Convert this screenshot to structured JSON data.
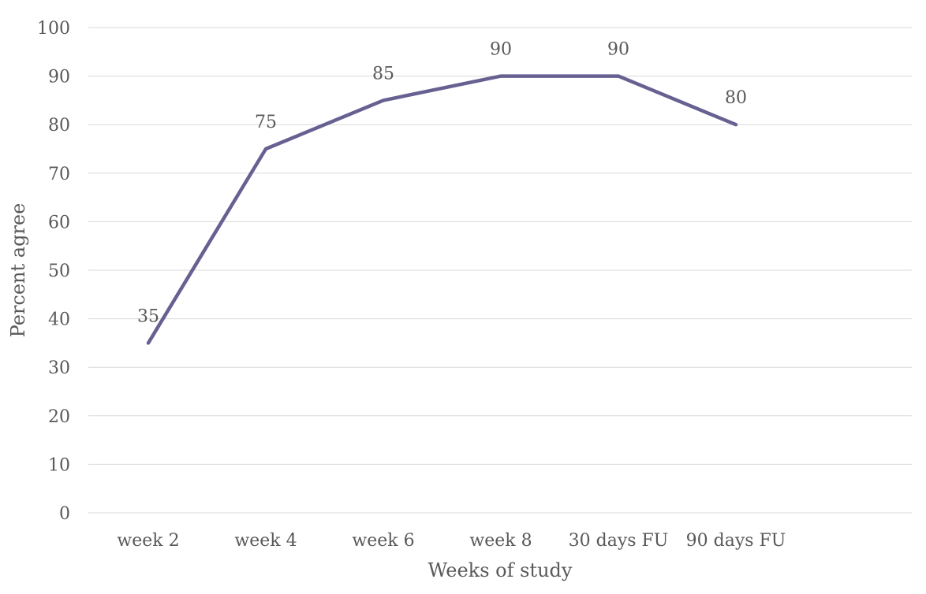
{
  "chart_data": {
    "type": "line",
    "categories": [
      "week 2",
      "week 4",
      "week 6",
      "week 8",
      "30 days FU",
      "90 days FU"
    ],
    "series": [
      {
        "values": [
          35,
          75,
          85,
          90,
          90,
          80
        ],
        "color": "#666191"
      }
    ],
    "data_labels": [
      "35",
      "75",
      "85",
      "90",
      "90",
      "80"
    ],
    "xlabel": "Weeks of study",
    "ylabel": "Percent agree",
    "ylim": [
      0,
      100
    ],
    "yticks": [
      "0",
      "10",
      "20",
      "30",
      "40",
      "50",
      "60",
      "70",
      "80",
      "90",
      "100"
    ],
    "grid": true,
    "legend": "none",
    "gridline_color": "#d9d9d9",
    "text_color": "#595959"
  }
}
